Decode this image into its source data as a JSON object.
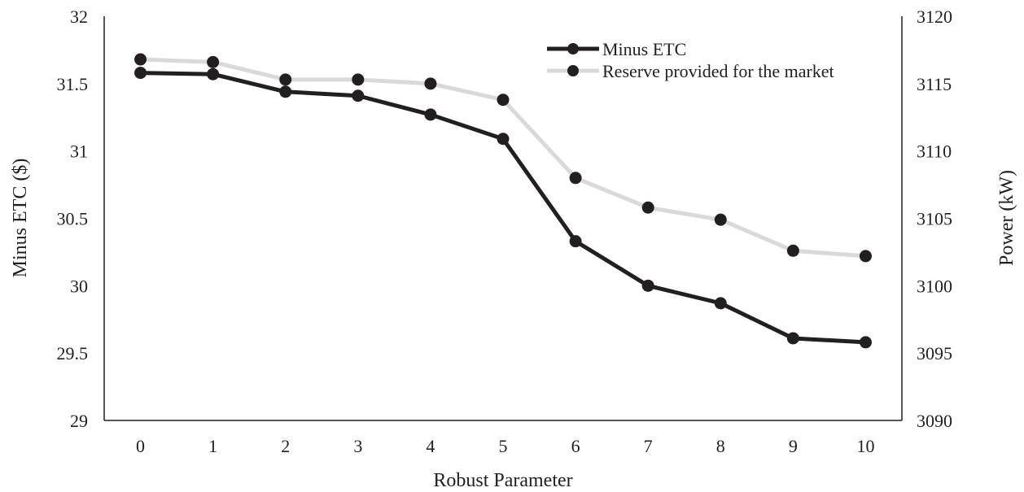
{
  "chart_data": {
    "type": "line",
    "title": "",
    "xlabel": "Robust Parameter",
    "ylabel": "Minus ETC ($)",
    "y2label": "Power (kW)",
    "categories": [
      "0",
      "1",
      "2",
      "3",
      "4",
      "5",
      "6",
      "7",
      "8",
      "9",
      "10"
    ],
    "ylim": [
      29,
      32
    ],
    "y2lim": [
      3090,
      3120
    ],
    "yticks": [
      "29",
      "29.5",
      "30",
      "30.5",
      "31",
      "31.5",
      "32"
    ],
    "y2ticks": [
      "3090",
      "3095",
      "3100",
      "3105",
      "3110",
      "3115",
      "3120"
    ],
    "grid": false,
    "legend_position": "top-right",
    "series": [
      {
        "name": "Minus ETC",
        "axis": "left",
        "color": "#231f20",
        "values": [
          31.58,
          31.57,
          31.44,
          31.41,
          31.27,
          31.09,
          30.33,
          30.0,
          29.87,
          29.61,
          29.58
        ]
      },
      {
        "name": "Reserve provided for the market",
        "axis": "right",
        "color": "#d9d9d9",
        "marker_color": "#231f20",
        "values": [
          3116.8,
          3116.6,
          3115.3,
          3115.3,
          3115.0,
          3113.8,
          3108.0,
          3105.8,
          3104.9,
          3102.6,
          3102.2
        ]
      }
    ]
  }
}
